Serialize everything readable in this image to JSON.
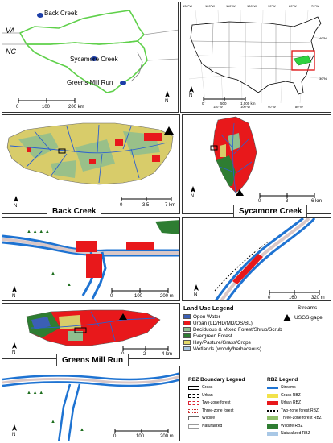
{
  "overview_panel": {
    "state_labels": {
      "va": "VA",
      "nc": "NC"
    },
    "site_labels": {
      "back_creek": "Back Creek",
      "sycamore_creek": "Sycamore Creek",
      "greens_mill_run": "Greens Mill Run"
    },
    "scale_ticks": [
      "0",
      "100",
      "200 km"
    ],
    "north_label": "N"
  },
  "us_panel": {
    "top_lon_labels": [
      "130°W",
      "120°W",
      "110°W",
      "100°W",
      "90°W",
      "80°W",
      "70°W"
    ],
    "bottom_lon_labels": [
      "110°W",
      "100°W",
      "90°W",
      "80°W"
    ],
    "lat_labels": [
      "40°N",
      "30°N"
    ],
    "scale_ticks": [
      "0",
      "500",
      "1,000 km"
    ],
    "north_label": "N"
  },
  "back_creek_panel": {
    "title": "Back Creek",
    "scale_ticks": [
      "0",
      "3.5",
      "7 km"
    ],
    "north_label": "N"
  },
  "sycamore_panel": {
    "title": "Sycamore Creek",
    "scale_ticks": [
      "0",
      "3",
      "6 km"
    ],
    "north_label": "N"
  },
  "back_creek_detail": {
    "scale_ticks": [
      "0",
      "100",
      "200 m"
    ],
    "north_label": "N"
  },
  "sycamore_detail": {
    "scale_ticks": [
      "0",
      "160",
      "320 m"
    ],
    "north_label": "N"
  },
  "greens_panel": {
    "title": "Greens Mill Run",
    "scale_ticks": [
      "0",
      "2",
      "4 km"
    ],
    "north_label": "N"
  },
  "greens_detail": {
    "scale_ticks": [
      "0",
      "100",
      "200 m"
    ],
    "north_label": "N"
  },
  "land_use_legend": {
    "title": "Land Use Legend",
    "items": [
      {
        "label": "Open Water",
        "color": "#3b5fb5"
      },
      {
        "label": "Urban (LD/HD/MD/OS/BL)",
        "color": "#e8181b"
      },
      {
        "label": "Deciduous & Mixed Forest/Shrub/Scrub",
        "color": "#8fbf8f"
      },
      {
        "label": "Evergreen Forest",
        "color": "#2e7d32"
      },
      {
        "label": "Hay/Pasture/Grass/Crops",
        "color": "#e3d96a"
      },
      {
        "label": "Wetlands (woody/herbaceous)",
        "color": "#a9c8e6"
      }
    ],
    "streams_label": "Streams",
    "gage_label": "USGS gage"
  },
  "rbz_boundary_legend": {
    "title": "RBZ Boundary Legend",
    "items": [
      "Grass",
      "Urban",
      "Two-zone forest",
      "Three-zone forest",
      "Wildlife",
      "Naturalized"
    ]
  },
  "rbz_legend": {
    "title": "RBZ Legend",
    "items": [
      {
        "label": "Streams",
        "color": "#1e73d2"
      },
      {
        "label": "Grass RBZ",
        "color": "#f2e24a"
      },
      {
        "label": "Urban RBZ",
        "color": "#e8181b"
      },
      {
        "label": "Two-zone forest RBZ",
        "color": "#000000"
      },
      {
        "label": "Three-zone forest RBZ",
        "color": "#8fbf6a"
      },
      {
        "label": "Wildlife RBZ",
        "color": "#2e7d32"
      },
      {
        "label": "Naturalized RBZ",
        "color": "#a9c8e6"
      }
    ]
  }
}
